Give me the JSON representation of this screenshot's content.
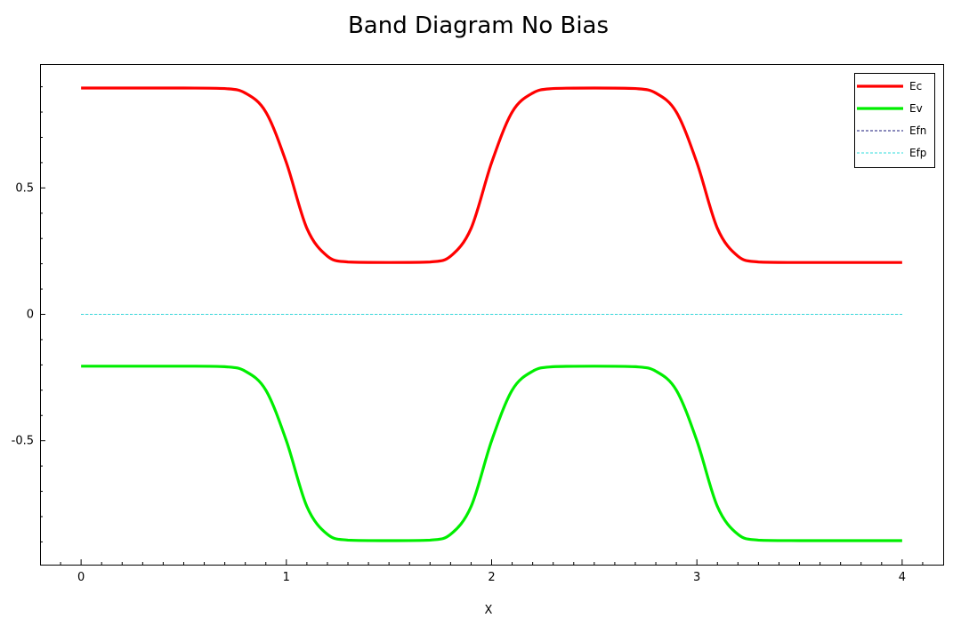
{
  "chart_data": {
    "type": "line",
    "title": "Band Diagram No Bias",
    "xlabel": "X",
    "ylabel": "",
    "xlim": [
      -0.2,
      4.2
    ],
    "ylim": [
      -0.99,
      0.99
    ],
    "x_ticks": [
      "0",
      "1",
      "2",
      "3",
      "4"
    ],
    "y_ticks": [
      "-0.5",
      "0",
      "0.5"
    ],
    "grid": false,
    "legend_position": "top-right",
    "series": [
      {
        "name": "Ec",
        "color": "#ff0000",
        "style": "solid",
        "x": [
          0,
          0.5,
          0.7,
          0.8,
          0.9,
          1.0,
          1.1,
          1.2,
          1.3,
          1.5,
          1.7,
          1.8,
          1.9,
          2.0,
          2.1,
          2.2,
          2.3,
          2.5,
          2.7,
          2.8,
          2.9,
          3.0,
          3.1,
          3.2,
          3.3,
          3.5,
          4.0
        ],
        "y": [
          0.895,
          0.895,
          0.893,
          0.875,
          0.8,
          0.6,
          0.34,
          0.23,
          0.207,
          0.205,
          0.207,
          0.23,
          0.34,
          0.6,
          0.8,
          0.875,
          0.893,
          0.895,
          0.893,
          0.875,
          0.8,
          0.6,
          0.34,
          0.23,
          0.207,
          0.205,
          0.205
        ]
      },
      {
        "name": "Ev",
        "color": "#00ee00",
        "style": "solid",
        "x": [
          0,
          0.5,
          0.7,
          0.8,
          0.9,
          1.0,
          1.1,
          1.2,
          1.3,
          1.5,
          1.7,
          1.8,
          1.9,
          2.0,
          2.1,
          2.2,
          2.3,
          2.5,
          2.7,
          2.8,
          2.9,
          3.0,
          3.1,
          3.2,
          3.3,
          3.5,
          4.0
        ],
        "y": [
          -0.205,
          -0.205,
          -0.207,
          -0.225,
          -0.3,
          -0.5,
          -0.76,
          -0.87,
          -0.893,
          -0.895,
          -0.893,
          -0.87,
          -0.76,
          -0.5,
          -0.3,
          -0.225,
          -0.207,
          -0.205,
          -0.207,
          -0.225,
          -0.3,
          -0.5,
          -0.76,
          -0.87,
          -0.893,
          -0.895,
          -0.895
        ]
      },
      {
        "name": "Efn",
        "color": "#1a1a7a",
        "style": "dashed",
        "x": [
          0,
          4.0
        ],
        "y": [
          0,
          0
        ]
      },
      {
        "name": "Efp",
        "color": "#33dddd",
        "style": "dashed",
        "x": [
          0,
          4.0
        ],
        "y": [
          0,
          0
        ]
      }
    ]
  }
}
